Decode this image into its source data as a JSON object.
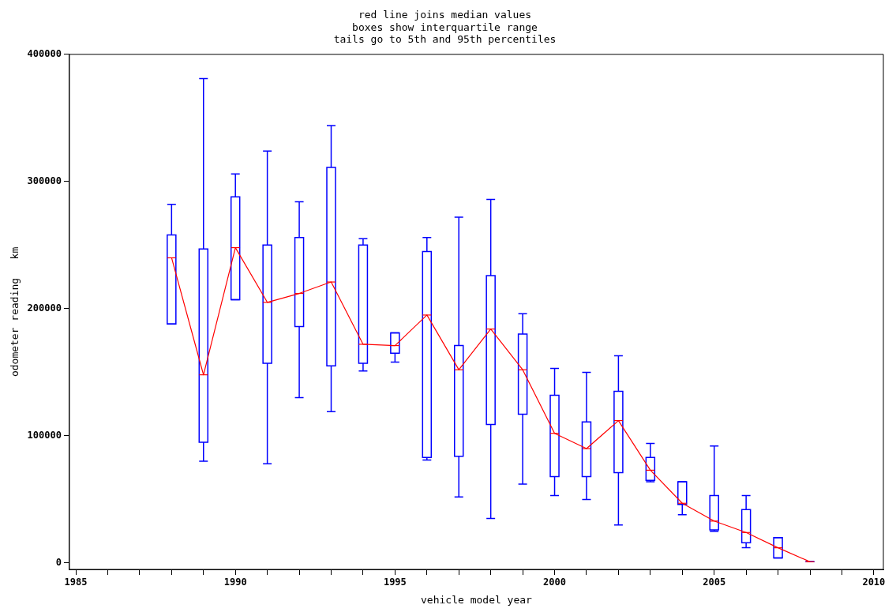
{
  "chart_data": {
    "type": "box",
    "title": "red line joins median values\nboxes show interquartile range\ntails go to 5th and 95th percentiles",
    "xlabel": "vehicle model year",
    "ylabel": "odometer reading   km",
    "xlim": [
      1984.8,
      2010.3
    ],
    "xticks": [
      1985,
      {
        "value": 1986,
        "label": null
      },
      {
        "value": 1987,
        "label": null
      },
      {
        "value": 1988,
        "label": null
      },
      {
        "value": 1989,
        "label": null
      },
      1990,
      {
        "value": 1991,
        "label": null
      },
      {
        "value": 1992,
        "label": null
      },
      {
        "value": 1993,
        "label": null
      },
      {
        "value": 1994,
        "label": null
      },
      1995,
      {
        "value": 1996,
        "label": null
      },
      {
        "value": 1997,
        "label": null
      },
      {
        "value": 1998,
        "label": null
      },
      {
        "value": 1999,
        "label": null
      },
      2000,
      {
        "value": 2001,
        "label": null
      },
      {
        "value": 2002,
        "label": null
      },
      {
        "value": 2003,
        "label": null
      },
      {
        "value": 2004,
        "label": null
      },
      2005,
      {
        "value": 2006,
        "label": null
      },
      {
        "value": 2007,
        "label": null
      },
      {
        "value": 2008,
        "label": null
      },
      {
        "value": 2009,
        "label": null
      },
      2010
    ],
    "ylim": [
      -5000,
      400000
    ],
    "yticks": [
      0,
      100000,
      200000,
      300000,
      400000
    ],
    "grid": false,
    "legend": false,
    "series": [
      {
        "type": "box",
        "color": "#0000ff",
        "x": [
          1988,
          1989,
          1990,
          1991,
          1992,
          1993,
          1994,
          1995,
          1996,
          1997,
          1998,
          1999,
          2000,
          2001,
          2002,
          2003,
          2004,
          2005,
          2006,
          2007,
          2008
        ],
        "boxes": [
          {
            "low": 188000,
            "q1": 188000,
            "median": 240000,
            "q3": 258000,
            "high": 282000
          },
          {
            "low": 80000,
            "q1": 95000,
            "median": 148000,
            "q3": 247000,
            "high": 381000
          },
          {
            "low": 207000,
            "q1": 207000,
            "median": 248000,
            "q3": 288000,
            "high": 306000
          },
          {
            "low": 78000,
            "q1": 157000,
            "median": 205000,
            "q3": 250000,
            "high": 324000
          },
          {
            "low": 130000,
            "q1": 186000,
            "median": 212000,
            "q3": 256000,
            "high": 284000
          },
          {
            "low": 119000,
            "q1": 155000,
            "median": 221000,
            "q3": 311000,
            "high": 344000
          },
          {
            "low": 151000,
            "q1": 157000,
            "median": 172000,
            "q3": 250000,
            "high": 255000
          },
          {
            "low": 158000,
            "q1": 165000,
            "median": 171000,
            "q3": 181000,
            "high": 181000
          },
          {
            "low": 81000,
            "q1": 83000,
            "median": 195000,
            "q3": 245000,
            "high": 256000
          },
          {
            "low": 52000,
            "q1": 84000,
            "median": 152000,
            "q3": 171000,
            "high": 272000
          },
          {
            "low": 35000,
            "q1": 109000,
            "median": 184000,
            "q3": 226000,
            "high": 286000
          },
          {
            "low": 62000,
            "q1": 117000,
            "median": 152000,
            "q3": 180000,
            "high": 196000
          },
          {
            "low": 53000,
            "q1": 68000,
            "median": 102000,
            "q3": 132000,
            "high": 153000
          },
          {
            "low": 50000,
            "q1": 68000,
            "median": 90000,
            "q3": 111000,
            "high": 150000
          },
          {
            "low": 30000,
            "q1": 71000,
            "median": 112000,
            "q3": 135000,
            "high": 163000
          },
          {
            "low": 64000,
            "q1": 65000,
            "median": 73000,
            "q3": 83000,
            "high": 94000
          },
          {
            "low": 38000,
            "q1": 46000,
            "median": 47000,
            "q3": 64000,
            "high": 64000
          },
          {
            "low": 25000,
            "q1": 26000,
            "median": 33000,
            "q3": 53000,
            "high": 92000
          },
          {
            "low": 12000,
            "q1": 16000,
            "median": 24000,
            "q3": 42000,
            "high": 53000
          },
          {
            "low": 4000,
            "q1": 4000,
            "median": 12000,
            "q3": 20000,
            "high": 20000
          },
          {
            "low": 1000,
            "q1": 1000,
            "median": 1000,
            "q3": 1000,
            "high": 1000
          }
        ]
      },
      {
        "type": "line",
        "color": "#ff0000",
        "x": [
          1988,
          1989,
          1990,
          1991,
          1992,
          1993,
          1994,
          1995,
          1996,
          1997,
          1998,
          1999,
          2000,
          2001,
          2002,
          2003,
          2004,
          2005,
          2006,
          2007,
          2008
        ],
        "values": [
          240000,
          148000,
          248000,
          205000,
          212000,
          221000,
          172000,
          171000,
          195000,
          152000,
          184000,
          152000,
          102000,
          90000,
          112000,
          73000,
          47000,
          33000,
          24000,
          12000,
          1000
        ]
      }
    ]
  }
}
